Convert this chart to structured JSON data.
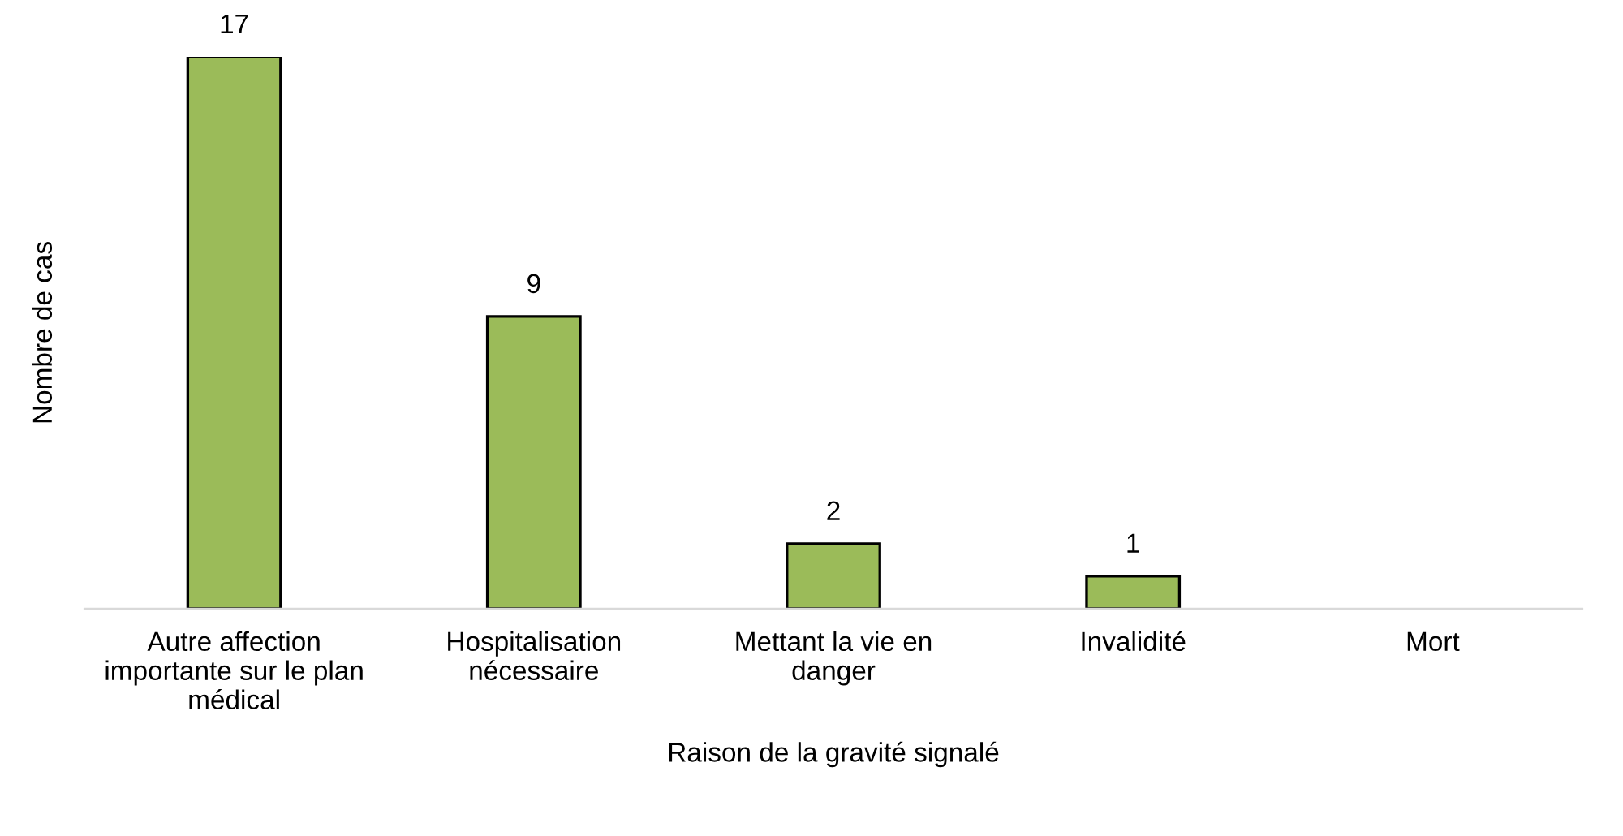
{
  "chart_data": {
    "type": "bar",
    "xlabel": "Raison de la gravité signalé",
    "ylabel": "Nombre de cas",
    "categories": [
      "Autre affection importante sur le plan médical",
      "Hospitalisation nécessaire",
      "Mettant la vie en danger",
      "Invalidité",
      "Mort"
    ],
    "values": [
      17,
      9,
      2,
      1,
      null
    ],
    "value_labels": [
      "17",
      "9",
      "2",
      "1",
      null
    ],
    "color": "#9bbb59",
    "grid": false,
    "legend": false
  }
}
